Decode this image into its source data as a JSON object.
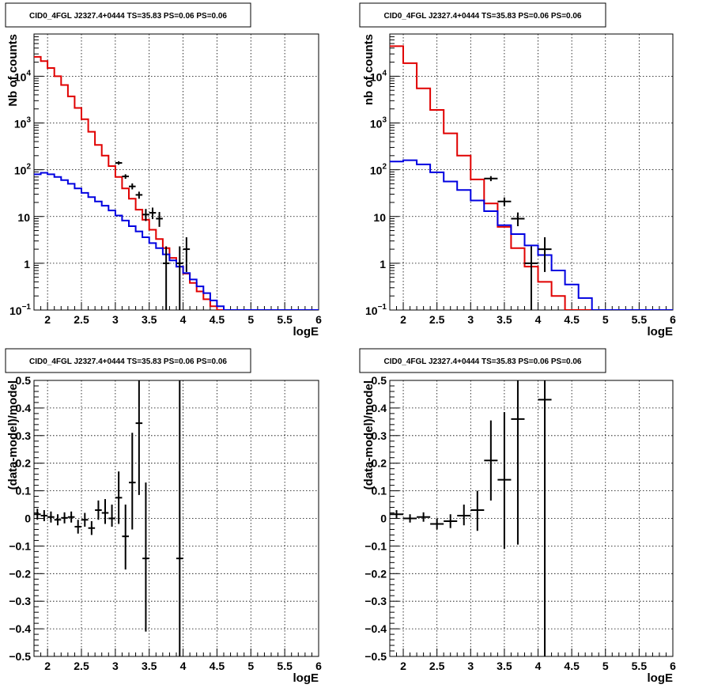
{
  "chart_data": [
    {
      "type": "line",
      "title": "CID0_4FGL J2327.4+0444 TS=35.83 PS=0.06 PS=0.06",
      "xlabel": "logE",
      "ylabel": "Nb of counts",
      "xlim": [
        1.8,
        6.0
      ],
      "ylim": [
        0.1,
        80000
      ],
      "yscale": "log",
      "grid": true,
      "xticks": [
        "2",
        "2.5",
        "3",
        "3.5",
        "4",
        "4.5",
        "5",
        "5.5",
        "6"
      ],
      "yticks": [
        {
          "v": 0.1,
          "t": "10",
          "sup": "−1"
        },
        {
          "v": 1,
          "t": "1"
        },
        {
          "v": 10,
          "t": "10"
        },
        {
          "v": 100,
          "t": "10",
          "sup": "2"
        },
        {
          "v": 1000,
          "t": "10",
          "sup": "3"
        },
        {
          "v": 10000,
          "t": "10",
          "sup": "4"
        }
      ],
      "bin_edges": [
        1.8,
        1.9,
        2.0,
        2.1,
        2.2,
        2.3,
        2.4,
        2.5,
        2.6,
        2.7,
        2.8,
        2.9,
        3.0,
        3.1,
        3.2,
        3.3,
        3.4,
        3.5,
        3.6,
        3.7,
        3.8,
        3.9,
        4.0,
        4.1,
        4.2,
        4.3,
        4.4,
        4.5,
        4.6,
        4.7,
        4.8,
        4.9,
        5.0,
        5.1,
        5.2,
        5.3,
        5.4,
        5.5,
        5.6,
        5.7,
        5.8,
        5.9,
        6.0
      ],
      "series": [
        {
          "color": "#e00000",
          "values": [
            26000,
            21000,
            15000,
            10000,
            6500,
            3700,
            2100,
            1200,
            650,
            340,
            200,
            120,
            70,
            40,
            24,
            14,
            8.5,
            5.2,
            3.3,
            2.1,
            1.3,
            0.85,
            0.6,
            0.38,
            0.25,
            0.17,
            0.12,
            0.1,
            0.1,
            0.1,
            0.1,
            0.1,
            0.1,
            0.1,
            0.1,
            0.1,
            0.1,
            0.1,
            0.1,
            0.1,
            0.1,
            0.1
          ]
        },
        {
          "color": "#0000e0",
          "values": [
            80,
            86,
            80,
            70,
            60,
            50,
            40,
            32,
            26,
            21,
            17,
            13.5,
            10.5,
            8.2,
            6.2,
            4.8,
            3.6,
            2.7,
            2.1,
            1.55,
            1.15,
            0.85,
            0.62,
            0.45,
            0.32,
            0.23,
            0.16,
            0.12,
            0.1,
            0.1,
            0.1,
            0.1,
            0.1,
            0.1,
            0.1,
            0.1,
            0.1,
            0.1,
            0.1,
            0.1,
            0.1,
            0.1
          ]
        }
      ],
      "data_points": [
        {
          "x": 3.05,
          "y": 140,
          "xerr": 0.05,
          "ylo": 128,
          "yhi": 152
        },
        {
          "x": 3.15,
          "y": 72,
          "xerr": 0.05,
          "ylo": 64,
          "yhi": 80
        },
        {
          "x": 3.25,
          "y": 44,
          "xerr": 0.05,
          "ylo": 38,
          "yhi": 51
        },
        {
          "x": 3.35,
          "y": 29,
          "xerr": 0.05,
          "ylo": 24,
          "yhi": 34
        },
        {
          "x": 3.45,
          "y": 11,
          "xerr": 0.05,
          "ylo": 8,
          "yhi": 14.5
        },
        {
          "x": 3.55,
          "y": 12,
          "xerr": 0.05,
          "ylo": 8.8,
          "yhi": 15.5
        },
        {
          "x": 3.65,
          "y": 9,
          "xerr": 0.05,
          "ylo": 6,
          "yhi": 12.5
        },
        {
          "x": 3.75,
          "y": 1,
          "xerr": 0.05,
          "ylo": 0.1,
          "yhi": 2.3
        },
        {
          "x": 3.95,
          "y": 1,
          "xerr": 0.05,
          "ylo": 0.1,
          "yhi": 2.3
        },
        {
          "x": 4.05,
          "y": 2,
          "xerr": 0.05,
          "ylo": 0.65,
          "yhi": 3.6
        }
      ]
    },
    {
      "type": "line",
      "title": "CID0_4FGL J2327.4+0444 TS=35.83 PS=0.06 PS=0.06",
      "xlabel": "logE",
      "ylabel": "nb of counts",
      "xlim": [
        1.8,
        6.0
      ],
      "ylim": [
        0.1,
        80000
      ],
      "yscale": "log",
      "grid": true,
      "xticks": [
        "2",
        "2.5",
        "3",
        "3.5",
        "4",
        "4.5",
        "5",
        "5.5",
        "6"
      ],
      "yticks": [
        {
          "v": 0.1,
          "t": "10",
          "sup": "−1"
        },
        {
          "v": 1,
          "t": "1"
        },
        {
          "v": 10,
          "t": "10"
        },
        {
          "v": 100,
          "t": "10",
          "sup": "2"
        },
        {
          "v": 1000,
          "t": "10",
          "sup": "3"
        },
        {
          "v": 10000,
          "t": "10",
          "sup": "4"
        }
      ],
      "bin_edges": [
        1.8,
        2.0,
        2.2,
        2.4,
        2.6,
        2.8,
        3.0,
        3.2,
        3.4,
        3.6,
        3.8,
        4.0,
        4.2,
        4.4,
        4.6,
        4.8,
        5.0,
        5.2,
        5.4,
        5.6,
        5.8,
        6.0
      ],
      "series": [
        {
          "color": "#e00000",
          "values": [
            44000,
            19000,
            5500,
            1900,
            600,
            200,
            62,
            19,
            6,
            2.1,
            0.85,
            0.4,
            0.2,
            0.1,
            0.1,
            0.1,
            0.1,
            0.1,
            0.1,
            0.1,
            0.1
          ]
        },
        {
          "color": "#0000e0",
          "values": [
            150,
            160,
            130,
            88,
            56,
            37,
            22,
            13,
            6.5,
            4.2,
            2.4,
            1.5,
            0.7,
            0.35,
            0.18,
            0.1,
            0.1,
            0.1,
            0.1,
            0.1,
            0.1
          ]
        }
      ],
      "data_points": [
        {
          "x": 3.3,
          "y": 65,
          "xerr": 0.1,
          "ylo": 57,
          "yhi": 73
        },
        {
          "x": 3.5,
          "y": 21,
          "xerr": 0.1,
          "ylo": 16.5,
          "yhi": 25.5
        },
        {
          "x": 3.7,
          "y": 9,
          "xerr": 0.1,
          "ylo": 6.2,
          "yhi": 12.2
        },
        {
          "x": 3.9,
          "y": 1,
          "xerr": 0.1,
          "ylo": 0.1,
          "yhi": 2.3
        },
        {
          "x": 4.1,
          "y": 2,
          "xerr": 0.1,
          "ylo": 0.65,
          "yhi": 3.6
        }
      ]
    },
    {
      "type": "scatter",
      "title": "CID0_4FGL J2327.4+0444 TS=35.83 PS=0.06 PS=0.06",
      "xlabel": "logE",
      "ylabel": "(data-model)/model",
      "xlim": [
        1.8,
        6.0
      ],
      "ylim": [
        -0.5,
        0.5
      ],
      "grid": true,
      "xticks": [
        "2",
        "2.5",
        "3",
        "3.5",
        "4",
        "4.5",
        "5",
        "5.5",
        "6"
      ],
      "yticks": [
        "−0.5",
        "−0.4",
        "−0.3",
        "−0.2",
        "−0.1",
        "0",
        "0.1",
        "0.2",
        "0.3",
        "0.4",
        "0.5"
      ],
      "data_points": [
        {
          "x": 1.85,
          "y": 0.015,
          "xerr": 0.05,
          "ylo": -0.005,
          "yhi": 0.035
        },
        {
          "x": 1.95,
          "y": 0.01,
          "xerr": 0.05,
          "ylo": -0.01,
          "yhi": 0.03
        },
        {
          "x": 2.05,
          "y": 0.005,
          "xerr": 0.05,
          "ylo": -0.015,
          "yhi": 0.025
        },
        {
          "x": 2.15,
          "y": -0.005,
          "xerr": 0.05,
          "ylo": -0.025,
          "yhi": 0.015
        },
        {
          "x": 2.25,
          "y": 0.002,
          "xerr": 0.05,
          "ylo": -0.018,
          "yhi": 0.022
        },
        {
          "x": 2.35,
          "y": 0.005,
          "xerr": 0.05,
          "ylo": -0.015,
          "yhi": 0.025
        },
        {
          "x": 2.45,
          "y": -0.03,
          "xerr": 0.05,
          "ylo": -0.055,
          "yhi": -0.005
        },
        {
          "x": 2.55,
          "y": -0.005,
          "xerr": 0.05,
          "ylo": -0.03,
          "yhi": 0.02
        },
        {
          "x": 2.65,
          "y": -0.035,
          "xerr": 0.05,
          "ylo": -0.06,
          "yhi": -0.01
        },
        {
          "x": 2.75,
          "y": 0.03,
          "xerr": 0.05,
          "ylo": -0.005,
          "yhi": 0.065
        },
        {
          "x": 2.85,
          "y": 0.02,
          "xerr": 0.05,
          "ylo": -0.02,
          "yhi": 0.07
        },
        {
          "x": 2.95,
          "y": 0.0,
          "xerr": 0.05,
          "ylo": -0.03,
          "yhi": 0.05
        },
        {
          "x": 3.05,
          "y": 0.075,
          "xerr": 0.05,
          "ylo": -0.02,
          "yhi": 0.17
        },
        {
          "x": 3.15,
          "y": -0.065,
          "xerr": 0.05,
          "ylo": -0.185,
          "yhi": 0.05
        },
        {
          "x": 3.25,
          "y": 0.13,
          "xerr": 0.05,
          "ylo": -0.04,
          "yhi": 0.31
        },
        {
          "x": 3.35,
          "y": 0.345,
          "xerr": 0.05,
          "ylo": 0.085,
          "yhi": 0.5
        },
        {
          "x": 3.45,
          "y": -0.145,
          "xerr": 0.05,
          "ylo": -0.41,
          "yhi": 0.13
        },
        {
          "x": 3.95,
          "y": -0.145,
          "xerr": 0.05,
          "ylo": -0.5,
          "yhi": 0.5
        }
      ]
    },
    {
      "type": "scatter",
      "title": "CID0_4FGL J2327.4+0444 TS=35.83 PS=0.06 PS=0.06",
      "xlabel": "logE",
      "ylabel": "(data-model)/model",
      "xlim": [
        1.8,
        6.0
      ],
      "ylim": [
        -0.5,
        0.5
      ],
      "grid": true,
      "xticks": [
        "2",
        "2.5",
        "3",
        "3.5",
        "4",
        "4.5",
        "5",
        "5.5",
        "6"
      ],
      "yticks": [
        "−0.5",
        "−0.4",
        "−0.3",
        "−0.2",
        "−0.1",
        "0",
        "0.1",
        "0.2",
        "0.3",
        "0.4",
        "0.5"
      ],
      "data_points": [
        {
          "x": 1.9,
          "y": 0.015,
          "xerr": 0.1,
          "ylo": 0.0,
          "yhi": 0.03
        },
        {
          "x": 2.1,
          "y": 0.0,
          "xerr": 0.1,
          "ylo": -0.015,
          "yhi": 0.015
        },
        {
          "x": 2.3,
          "y": 0.005,
          "xerr": 0.1,
          "ylo": -0.012,
          "yhi": 0.022
        },
        {
          "x": 2.5,
          "y": -0.02,
          "xerr": 0.1,
          "ylo": -0.04,
          "yhi": 0.0
        },
        {
          "x": 2.7,
          "y": -0.01,
          "xerr": 0.1,
          "ylo": -0.035,
          "yhi": 0.015
        },
        {
          "x": 2.9,
          "y": 0.01,
          "xerr": 0.1,
          "ylo": -0.025,
          "yhi": 0.05
        },
        {
          "x": 3.1,
          "y": 0.03,
          "xerr": 0.1,
          "ylo": -0.045,
          "yhi": 0.1
        },
        {
          "x": 3.3,
          "y": 0.21,
          "xerr": 0.1,
          "ylo": 0.065,
          "yhi": 0.355
        },
        {
          "x": 3.5,
          "y": 0.14,
          "xerr": 0.1,
          "ylo": -0.11,
          "yhi": 0.385
        },
        {
          "x": 3.7,
          "y": 0.36,
          "xerr": 0.1,
          "ylo": -0.095,
          "yhi": 0.5
        },
        {
          "x": 4.1,
          "y": 0.43,
          "xerr": 0.1,
          "ylo": -0.5,
          "yhi": 0.5
        }
      ]
    }
  ]
}
